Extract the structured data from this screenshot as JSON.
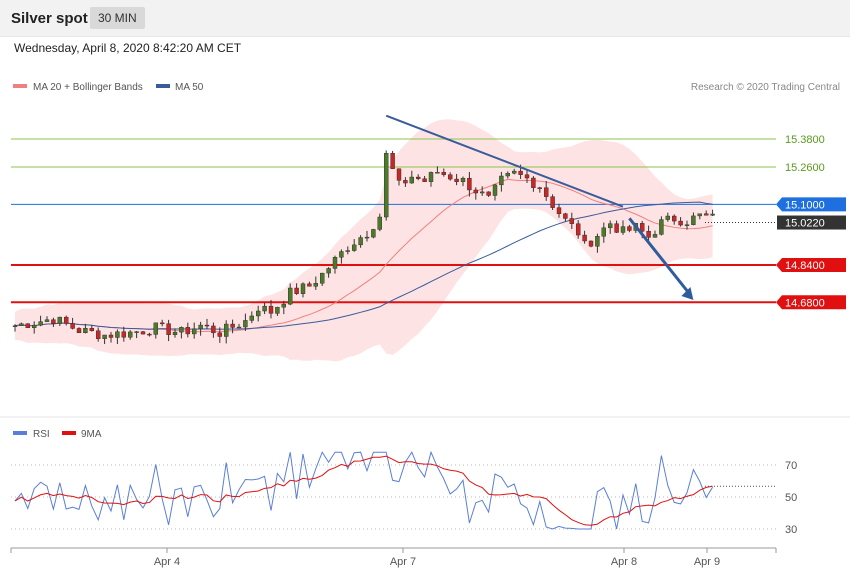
{
  "header": {
    "title": "Silver spot",
    "timeframe": "30 MIN",
    "datetime": "Wednesday, April 8, 2020 8:42:20 AM CET"
  },
  "legend": {
    "ma20_label": "MA 20 + Bollinger Bands",
    "ma50_label": "MA 50",
    "credit": "Research © 2020 Trading Central",
    "ma20_color": "#f08080",
    "ma50_color": "#3a5c9a"
  },
  "rsi_legend": {
    "rsi_label": "RSI",
    "ma_label": "9MA",
    "rsi_color": "#5b7fd6",
    "ma_color": "#e01010"
  },
  "chart_data": [
    {
      "type": "candlestick",
      "title": "Silver spot",
      "x_ticks": [
        "Apr 4",
        "Apr 7",
        "Apr 8",
        "Apr 9"
      ],
      "ylim": [
        14.38,
        15.65
      ],
      "price_levels": [
        {
          "label": "15.3800",
          "value": 15.38,
          "color": "#8bc34a",
          "kind": "resistance"
        },
        {
          "label": "15.2600",
          "value": 15.26,
          "color": "#8bc34a",
          "kind": "resistance"
        },
        {
          "label": "15.1000",
          "value": 15.1,
          "color": "#1e6fe0",
          "kind": "pivot"
        },
        {
          "label": "15.0220",
          "value": 15.022,
          "color": "#333333",
          "kind": "last-price"
        },
        {
          "label": "14.8400",
          "value": 14.84,
          "color": "#e01010",
          "kind": "support"
        },
        {
          "label": "14.6800",
          "value": 14.68,
          "color": "#e01010",
          "kind": "support"
        }
      ],
      "trendline": {
        "from": [
          58,
          15.48
        ],
        "to": [
          95,
          15.09
        ]
      },
      "forecast_arrow": {
        "from": [
          96,
          15.04
        ],
        "to": [
          106,
          14.69
        ]
      }
    },
    {
      "type": "line",
      "title": "RSI",
      "series": [
        {
          "name": "RSI"
        },
        {
          "name": "9MA"
        }
      ],
      "y_ticks": [
        70,
        50,
        30
      ],
      "ylim": [
        20,
        80
      ]
    }
  ]
}
